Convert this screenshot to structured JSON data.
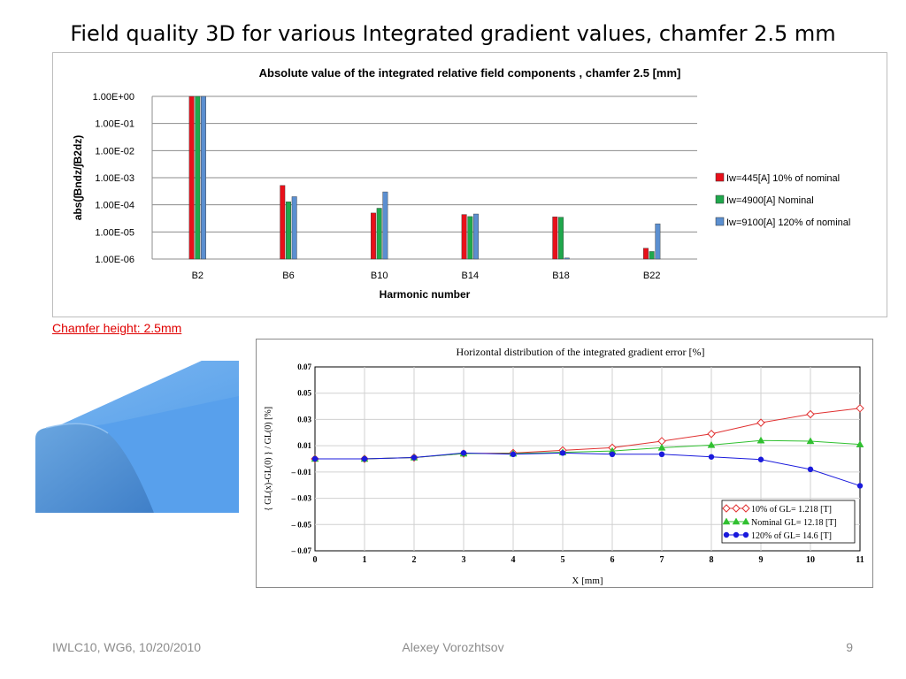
{
  "slide": {
    "title": "Field quality 3D for various Integrated gradient values, chamfer 2.5 mm",
    "chamfer_label": "Chamfer height: 2.5mm",
    "footer_left": "IWLC10, WG6, 10/20/2010",
    "footer_center": "Alexey Vorozhtsov",
    "footer_right": "9"
  },
  "chart_data": [
    {
      "type": "bar",
      "title": "Absolute value of the integrated relative field components , chamfer 2.5 [mm]",
      "xlabel": "Harmonic number",
      "ylabel": "abs(∫Bndz/∫B2dz)",
      "yscale": "log",
      "ylim": [
        1e-06,
        1
      ],
      "ytick_labels": [
        "1.00E+00",
        "1.00E-01",
        "1.00E-02",
        "1.00E-03",
        "1.00E-04",
        "1.00E-05",
        "1.00E-06"
      ],
      "categories": [
        "B2",
        "B6",
        "B10",
        "B14",
        "B18",
        "B22"
      ],
      "legend_position": "right",
      "grid": true,
      "series": [
        {
          "name": "Iw=445[A] 10% of nominal",
          "color": "#e8101a",
          "values": [
            1,
            0.00052,
            5e-05,
            4.4e-05,
            3.6e-05,
            2.5e-06
          ]
        },
        {
          "name": "Iw=4900[A] Nominal",
          "color": "#1fa84c",
          "values": [
            1,
            0.00013,
            7.5e-05,
            3.7e-05,
            3.5e-05,
            1.9e-06
          ]
        },
        {
          "name": "Iw=9100[A] 120% of nominal",
          "color": "#5b8fd0",
          "values": [
            1,
            0.0002,
            0.0003,
            4.6e-05,
            1.1e-06,
            2e-05
          ]
        }
      ]
    },
    {
      "type": "line",
      "title": "Horizontal distribution of the integrated gradient error [%]",
      "xlabel": "X [mm]",
      "ylabel": "{ GL(x)-GL(0) } / GL(0)  [%]",
      "xlim": [
        0,
        11
      ],
      "ylim": [
        -0.07,
        0.07
      ],
      "xticks": [
        0,
        1,
        2,
        3,
        4,
        5,
        6,
        7,
        8,
        9,
        10,
        11
      ],
      "ytick_labels": [
        "0.07",
        "0.05",
        "0.03",
        "0.01",
        "– 0.01",
        "– 0.03",
        "– 0.05",
        "– 0.07"
      ],
      "legend_position": "bottom-right",
      "grid": true,
      "x": [
        0,
        1,
        2,
        3,
        4,
        5,
        6,
        7,
        8,
        9,
        10,
        11
      ],
      "series": [
        {
          "name": "10% of GL= 1.218 [T]",
          "color": "#e03030",
          "marker": "diamond-open",
          "values": [
            0,
            0,
            0.001,
            0.004,
            0.0045,
            0.0065,
            0.0085,
            0.0135,
            0.019,
            0.0275,
            0.034,
            0.0385
          ]
        },
        {
          "name": "Nominal GL= 12.18 [T]",
          "color": "#30c030",
          "marker": "triangle",
          "values": [
            0,
            0,
            0.001,
            0.004,
            0.004,
            0.005,
            0.006,
            0.0085,
            0.0105,
            0.014,
            0.0135,
            0.011
          ]
        },
        {
          "name": "120% of GL= 14.6 [T]",
          "color": "#1a1adc",
          "marker": "circle",
          "values": [
            0,
            0,
            0.001,
            0.0045,
            0.0035,
            0.0045,
            0.0035,
            0.0035,
            0.0015,
            -0.0005,
            -0.008,
            -0.0205
          ]
        }
      ]
    }
  ]
}
